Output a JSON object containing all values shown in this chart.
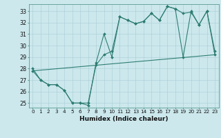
{
  "xlabel": "Humidex (Indice chaleur)",
  "background_color": "#cce8ed",
  "line_color": "#2e7d72",
  "xlim": [
    -0.5,
    23.5
  ],
  "ylim": [
    24.6,
    33.6
  ],
  "yticks": [
    25,
    26,
    27,
    28,
    29,
    30,
    31,
    32,
    33
  ],
  "xticks": [
    0,
    1,
    2,
    3,
    4,
    5,
    6,
    7,
    8,
    9,
    10,
    11,
    12,
    13,
    14,
    15,
    16,
    17,
    18,
    19,
    20,
    21,
    22,
    23
  ],
  "series_main": {
    "x": [
      0,
      1,
      2,
      3,
      4,
      5,
      6,
      7,
      8,
      9,
      10,
      11,
      12,
      13,
      14,
      15,
      16,
      17,
      18,
      19,
      20,
      21,
      22,
      23
    ],
    "y": [
      28.0,
      27.0,
      26.6,
      26.6,
      26.1,
      25.0,
      25.0,
      24.8,
      28.5,
      31.0,
      29.0,
      32.5,
      32.2,
      31.9,
      32.1,
      32.8,
      32.2,
      33.4,
      33.2,
      32.8,
      32.9,
      31.8,
      33.0,
      29.5
    ]
  },
  "series_linear": {
    "x": [
      0,
      23
    ],
    "y": [
      27.8,
      29.2
    ]
  },
  "series_envelope": {
    "x": [
      0,
      1,
      2,
      3,
      4,
      5,
      6,
      7,
      8,
      9,
      10,
      11,
      12,
      13,
      14,
      15,
      16,
      17,
      18,
      19,
      20,
      21,
      22,
      23
    ],
    "y": [
      27.8,
      27.0,
      26.6,
      26.6,
      26.1,
      25.0,
      25.0,
      25.0,
      28.3,
      29.2,
      29.5,
      32.5,
      32.2,
      31.9,
      32.1,
      32.8,
      32.2,
      33.4,
      33.2,
      29.0,
      33.0,
      31.8,
      33.0,
      29.2
    ]
  }
}
